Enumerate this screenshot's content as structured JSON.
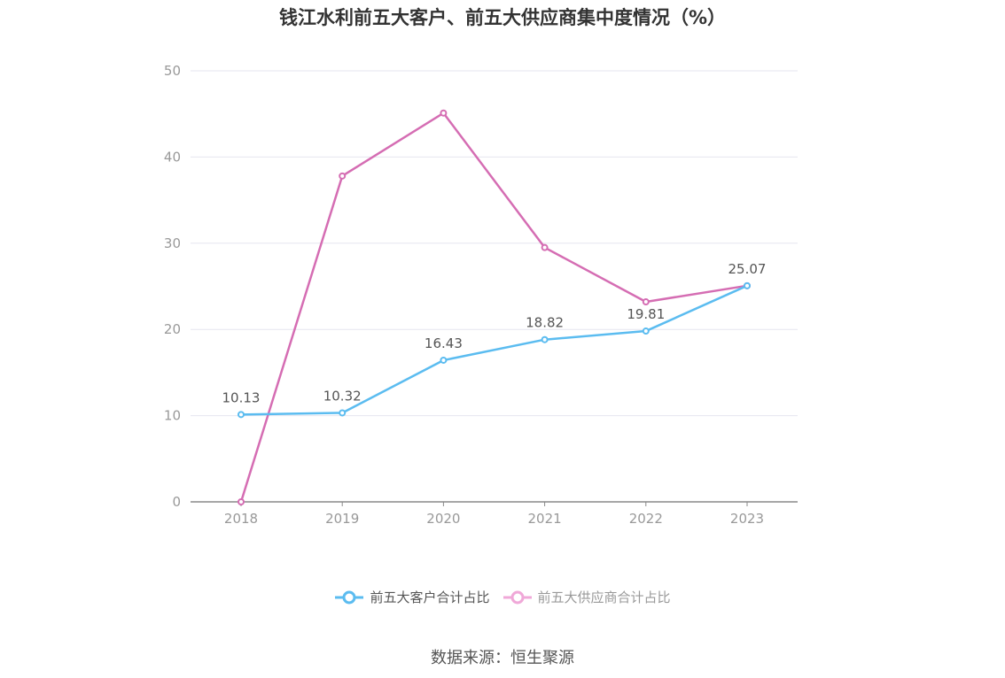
{
  "title": "钱江水利前五大客户、前五大供应商集中度情况（%）",
  "source": "数据来源：恒生聚源",
  "chart_data": {
    "type": "line",
    "title": "钱江水利前五大客户、前五大供应商集中度情况（%）",
    "xlabel": "",
    "ylabel": "",
    "categories": [
      "2018",
      "2019",
      "2020",
      "2021",
      "2022",
      "2023"
    ],
    "ylim": [
      0,
      50
    ],
    "yticks": [
      0,
      10,
      20,
      30,
      40,
      50
    ],
    "grid": true,
    "legend_position": "bottom",
    "series": [
      {
        "name": "前五大客户合计占比",
        "color": "#5bbcf0",
        "values": [
          10.13,
          10.32,
          16.43,
          18.82,
          19.81,
          25.07
        ],
        "labels": [
          "10.13",
          "10.32",
          "16.43",
          "18.82",
          "19.81",
          "25.07"
        ]
      },
      {
        "name": "前五大供应商合计占比",
        "color": "#d56db3",
        "values": [
          0,
          37.8,
          45.1,
          29.5,
          23.2,
          25.07
        ],
        "labels": []
      }
    ]
  },
  "legend": {
    "items": [
      {
        "label": "前五大客户合计占比",
        "color": "#5bbcf0"
      },
      {
        "label": "前五大供应商合计占比",
        "color": "#f0a8d8"
      }
    ]
  }
}
